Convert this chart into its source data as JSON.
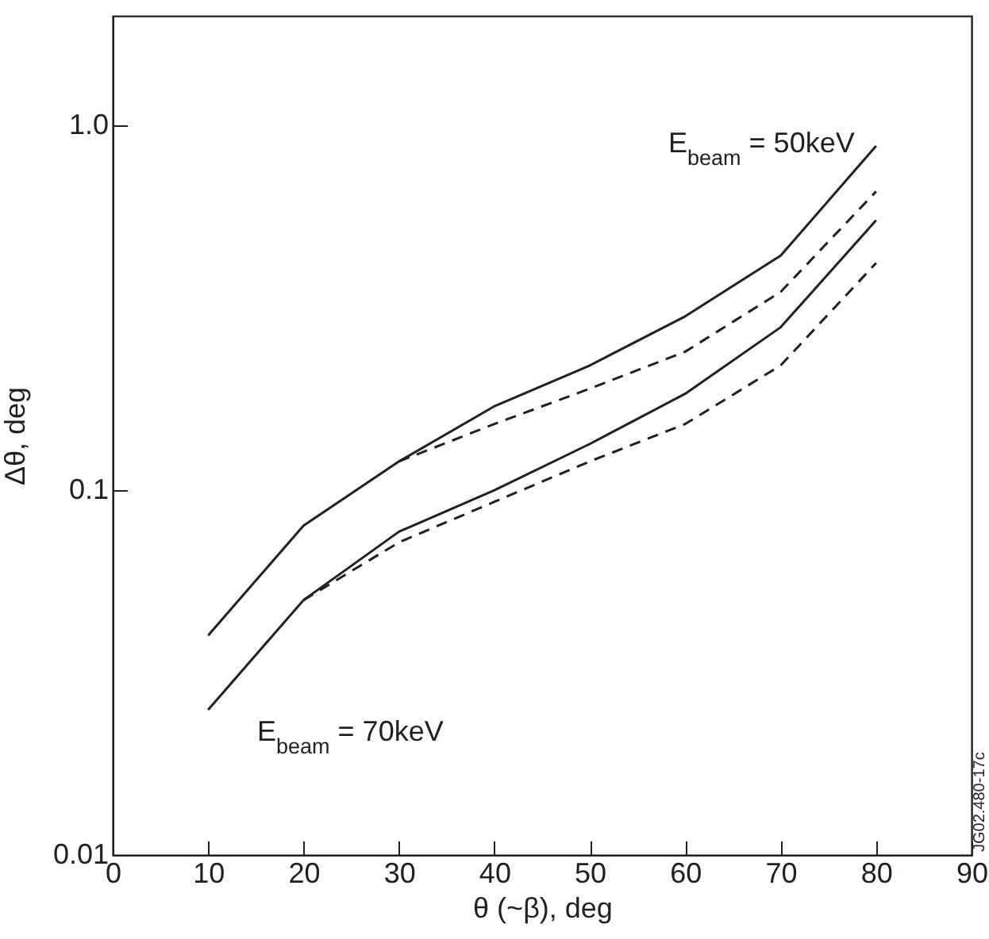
{
  "chart_data": {
    "type": "line",
    "xlabel": "θ (~β), deg",
    "ylabel": "Δθ, deg",
    "log": "y",
    "xlim": [
      0,
      90
    ],
    "xticks": [
      0,
      10,
      20,
      30,
      40,
      50,
      60,
      70,
      80,
      90
    ],
    "ylim": [
      0.01,
      2
    ],
    "yticks": [
      0.01,
      0.1,
      {
        "value": 1,
        "label": "1.0"
      }
    ],
    "grid": false,
    "marker": "none",
    "x": [
      10,
      20,
      30,
      40,
      50,
      60,
      70,
      80
    ],
    "series": [
      {
        "color": "#231f20",
        "line_style": "solid",
        "values": [
          0.04,
          0.08,
          0.12,
          0.17,
          0.22,
          0.3,
          0.44,
          0.88
        ]
      },
      {
        "color": "#231f20",
        "line_style": "dashed",
        "values": [
          null,
          null,
          0.12,
          0.152,
          0.19,
          0.24,
          0.35,
          0.66
        ]
      },
      {
        "color": "#231f20",
        "line_style": "solid",
        "values": [
          0.025,
          0.05,
          0.077,
          0.1,
          0.134,
          0.184,
          0.28,
          0.55
        ]
      },
      {
        "color": "#231f20",
        "line_style": "dashed",
        "values": [
          null,
          0.05,
          0.072,
          0.093,
          0.12,
          0.152,
          0.22,
          0.42
        ]
      }
    ],
    "annotations": [
      "E$_{beam}$ = 50keV",
      "E$_{beam}$ = 70keV",
      "JG02.480-17c"
    ]
  }
}
